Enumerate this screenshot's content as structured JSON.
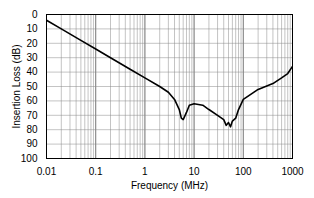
{
  "chart_data": {
    "type": "line",
    "x_label": "Frequency (MHz)",
    "y_label": "Insertion Loss (dB)",
    "x": [
      0.01,
      0.02,
      0.05,
      0.1,
      0.2,
      0.5,
      1,
      2,
      3,
      4,
      5,
      5.5,
      6,
      7,
      8,
      10,
      15,
      20,
      30,
      40,
      45,
      50,
      55,
      60,
      70,
      80,
      100,
      200,
      400,
      600,
      800,
      1000
    ],
    "values": [
      4,
      10,
      18,
      24,
      30,
      38,
      44,
      50,
      54,
      59,
      66,
      72,
      73,
      68,
      63,
      62,
      63,
      66,
      70,
      73,
      77,
      75,
      78,
      74,
      72,
      66,
      59,
      52,
      48,
      44,
      41,
      36
    ],
    "color": "#000000",
    "log": "x",
    "xlim": [
      0.01,
      1000
    ],
    "xticks": [
      0.01,
      0.1,
      1,
      10,
      100,
      1000
    ],
    "ylim": [
      0,
      100
    ],
    "yticks": [
      0,
      10,
      20,
      30,
      40,
      50,
      60,
      70,
      80,
      90,
      100
    ],
    "grid": true
  }
}
